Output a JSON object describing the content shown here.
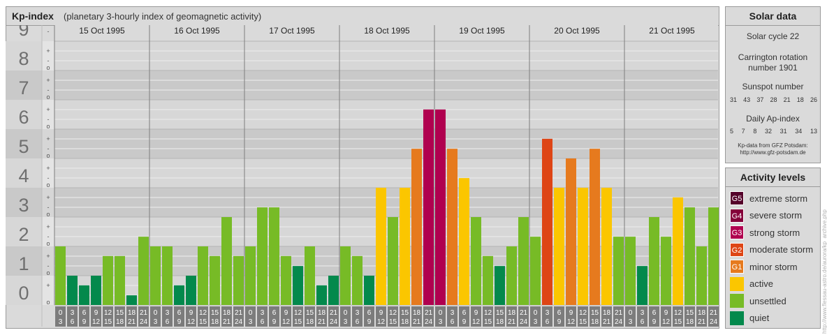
{
  "header": {
    "title": "Kp-index",
    "subtitle": "(planetary 3-hourly index of geomagnetic activity)"
  },
  "chart_data": {
    "type": "bar",
    "title": "Kp-index",
    "subtitle": "(planetary 3-hourly index of geomagnetic activity)",
    "ylim": [
      0,
      9
    ],
    "y_ticks": [
      "0",
      "1",
      "2",
      "3",
      "4",
      "5",
      "6",
      "7",
      "8",
      "9"
    ],
    "minor_tick_marks": [
      "o",
      "+",
      "-"
    ],
    "days": [
      "15 Oct 1995",
      "16 Oct 1995",
      "17 Oct 1995",
      "18 Oct 1995",
      "19 Oct 1995",
      "20 Oct 1995",
      "21 Oct 1995"
    ],
    "interval_labels": [
      [
        "0",
        "3"
      ],
      [
        "3",
        "6"
      ],
      [
        "6",
        "9"
      ],
      [
        "9",
        "12"
      ],
      [
        "12",
        "15"
      ],
      [
        "15",
        "18"
      ],
      [
        "18",
        "21"
      ],
      [
        "21",
        "24"
      ]
    ],
    "values": [
      [
        2,
        1,
        0.67,
        1,
        1.67,
        1.67,
        0.33,
        2.33
      ],
      [
        2,
        2,
        0.67,
        1,
        2,
        1.67,
        3,
        1.67
      ],
      [
        2,
        3.33,
        3.33,
        1.67,
        1.33,
        2,
        0.67,
        1
      ],
      [
        2,
        1.67,
        1,
        4,
        3,
        4,
        5.33,
        6.67
      ],
      [
        6.67,
        5.33,
        4.33,
        3,
        1.67,
        1.33,
        2,
        3
      ],
      [
        2.33,
        5.67,
        4,
        5,
        4,
        5.33,
        4,
        2.33
      ],
      [
        2.33,
        1.33,
        3,
        2.33,
        3.67,
        3.33,
        2,
        3.33
      ]
    ],
    "grid": true
  },
  "colors": {
    "quiet": "#03894c",
    "unsettled": "#77bb26",
    "active": "#fbc600",
    "G1": "#e67a1e",
    "G2": "#de4515",
    "G3": "#b0004f",
    "G4": "#85003a",
    "G5": "#55002a"
  },
  "solar": {
    "title": "Solar data",
    "cycle": "Solar cycle 22",
    "carrington_line1": "Carrington rotation",
    "carrington_line2": "number 1901",
    "sunspot_title": "Sunspot number",
    "sunspot_values": [
      "31",
      "43",
      "37",
      "28",
      "21",
      "18",
      "26"
    ],
    "ap_title": "Daily Ap-index",
    "ap_values": [
      "5",
      "7",
      "8",
      "32",
      "31",
      "34",
      "13"
    ],
    "source_line1": "Kp-data from GFZ Potsdam:",
    "source_line2": "http://www.gfz-potsdam.de"
  },
  "activity": {
    "title": "Activity levels",
    "levels": [
      {
        "code": "G5",
        "label": "extreme storm",
        "color": "#55002a"
      },
      {
        "code": "G4",
        "label": "severe storm",
        "color": "#85003a"
      },
      {
        "code": "G3",
        "label": "strong storm",
        "color": "#b0004f"
      },
      {
        "code": "G2",
        "label": "moderate storm",
        "color": "#de4515"
      },
      {
        "code": "G1",
        "label": "minor storm",
        "color": "#e67a1e"
      },
      {
        "code": "",
        "label": "active",
        "color": "#fbc600"
      },
      {
        "code": "",
        "label": "unsettled",
        "color": "#77bb26"
      },
      {
        "code": "",
        "label": "quiet",
        "color": "#03894c"
      }
    ]
  },
  "watermark": "http://www.flessau-astro.de/aurora/kp_archive.php"
}
